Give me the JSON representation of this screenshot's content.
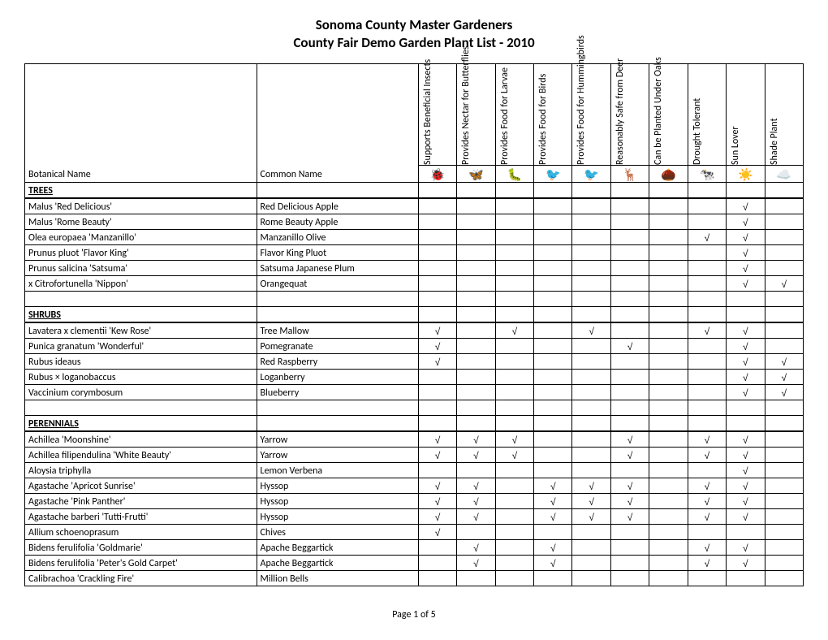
{
  "title_line1": "Sonoma County Master Gardeners",
  "title_line2": "County Fair Demo Garden Plant List - 2010",
  "footer": "Page 1 of 5",
  "check_mark": "√",
  "columns": {
    "botanical": "Botanical Name",
    "common": "Common Name",
    "attrs": [
      "Supports Beneficial Insects",
      "Provides Nectar for Butterflies",
      "Provides Food for Larvae",
      "Provides Food for Birds",
      "Provides Food for Hummingbirds",
      "Reasonably Safe from Deer",
      "Can be Planted Under Oaks",
      "Drought Tolerant",
      "Sun Lover",
      "Shade Plant"
    ]
  },
  "icons": [
    "🐞",
    "🦋",
    "🐛",
    "🐦",
    "🐦",
    "🦌",
    "🌰",
    "🐄",
    "☀️",
    "☁️"
  ],
  "sections": [
    {
      "name": "TREES",
      "rows": [
        {
          "b": "Malus 'Red Delicious'",
          "c": "Red Delicious Apple",
          "a": [
            0,
            0,
            0,
            0,
            0,
            0,
            0,
            0,
            1,
            0
          ]
        },
        {
          "b": "Malus 'Rome Beauty'",
          "c": "Rome Beauty Apple",
          "a": [
            0,
            0,
            0,
            0,
            0,
            0,
            0,
            0,
            1,
            0
          ]
        },
        {
          "b": "Olea europaea 'Manzanillo'",
          "c": "Manzanillo Olive",
          "a": [
            0,
            0,
            0,
            0,
            0,
            0,
            0,
            1,
            1,
            0
          ]
        },
        {
          "b": "Prunus pluot 'Flavor King'",
          "c": "Flavor King Pluot",
          "a": [
            0,
            0,
            0,
            0,
            0,
            0,
            0,
            0,
            1,
            0
          ]
        },
        {
          "b": "Prunus salicina 'Satsuma'",
          "c": "Satsuma Japanese Plum",
          "a": [
            0,
            0,
            0,
            0,
            0,
            0,
            0,
            0,
            1,
            0
          ]
        },
        {
          "b": "x Citrofortunella 'Nippon'",
          "c": "Orangequat",
          "a": [
            0,
            0,
            0,
            0,
            0,
            0,
            0,
            0,
            1,
            1
          ]
        }
      ]
    },
    {
      "name": "SHRUBS",
      "spacer_before": true,
      "rows": [
        {
          "b": "Lavatera x clementii 'Kew Rose'",
          "c": "Tree Mallow",
          "a": [
            1,
            0,
            1,
            0,
            1,
            0,
            0,
            1,
            1,
            0
          ]
        },
        {
          "b": "Punica granatum 'Wonderful'",
          "c": "Pomegranate",
          "a": [
            1,
            0,
            0,
            0,
            0,
            1,
            0,
            0,
            1,
            0
          ]
        },
        {
          "b": "Rubus ideaus",
          "c": "Red Raspberry",
          "a": [
            1,
            0,
            0,
            0,
            0,
            0,
            0,
            0,
            1,
            1
          ]
        },
        {
          "b": "Rubus × loganobaccus",
          "c": "Loganberry",
          "a": [
            0,
            0,
            0,
            0,
            0,
            0,
            0,
            0,
            1,
            1
          ]
        },
        {
          "b": "Vaccinium corymbosum",
          "c": "Blueberry",
          "a": [
            0,
            0,
            0,
            0,
            0,
            0,
            0,
            0,
            1,
            1
          ]
        }
      ]
    },
    {
      "name": "PERENNIALS",
      "spacer_before": true,
      "rows": [
        {
          "b": "Achillea 'Moonshine'",
          "c": "Yarrow",
          "a": [
            1,
            1,
            1,
            0,
            0,
            1,
            0,
            1,
            1,
            0
          ]
        },
        {
          "b": "Achillea filipendulina 'White Beauty'",
          "c": "Yarrow",
          "a": [
            1,
            1,
            1,
            0,
            0,
            1,
            0,
            1,
            1,
            0
          ]
        },
        {
          "b": "Aloysia triphylla",
          "c": "Lemon Verbena",
          "a": [
            0,
            0,
            0,
            0,
            0,
            0,
            0,
            0,
            1,
            0
          ]
        },
        {
          "b": "Agastache 'Apricot Sunrise'",
          "c": "Hyssop",
          "a": [
            1,
            1,
            0,
            1,
            1,
            1,
            0,
            1,
            1,
            0
          ]
        },
        {
          "b": "Agastache 'Pink Panther'",
          "c": "Hyssop",
          "a": [
            1,
            1,
            0,
            1,
            1,
            1,
            0,
            1,
            1,
            0
          ]
        },
        {
          "b": "Agastache barberi 'Tutti-Frutti'",
          "c": "Hyssop",
          "a": [
            1,
            1,
            0,
            1,
            1,
            1,
            0,
            1,
            1,
            0
          ]
        },
        {
          "b": "Allium schoenoprasum",
          "c": "Chives",
          "a": [
            1,
            0,
            0,
            0,
            0,
            0,
            0,
            0,
            0,
            0
          ]
        },
        {
          "b": "Bidens ferulifolia 'Goldmarie'",
          "c": "Apache Beggartick",
          "a": [
            0,
            1,
            0,
            1,
            0,
            0,
            0,
            1,
            1,
            0
          ]
        },
        {
          "b": "Bidens ferulifolia 'Peter's Gold Carpet'",
          "c": "Apache Beggartick",
          "a": [
            0,
            1,
            0,
            1,
            0,
            0,
            0,
            1,
            1,
            0
          ]
        },
        {
          "b": "Calibrachoa 'Crackling Fire'",
          "c": "Million Bells",
          "a": [
            0,
            0,
            0,
            0,
            0,
            0,
            0,
            0,
            0,
            0
          ]
        }
      ]
    }
  ]
}
